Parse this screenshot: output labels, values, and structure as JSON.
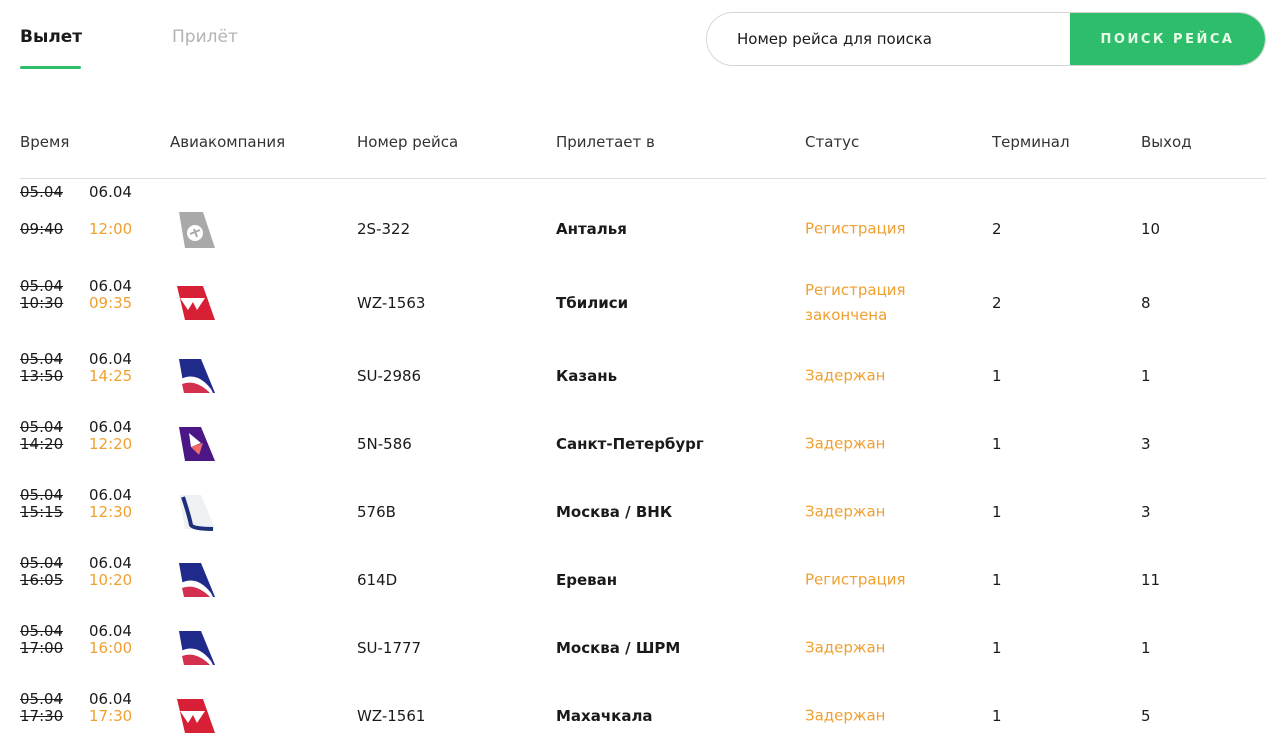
{
  "tabs": [
    {
      "label": "Вылет",
      "active": true
    },
    {
      "label": "Прилёт",
      "active": false
    }
  ],
  "search": {
    "placeholder": "Номер рейса для поиска",
    "button": "ПОИСК РЕЙСА"
  },
  "colors": {
    "accent": "#2ebd6b",
    "status": "#f0a030"
  },
  "columns": [
    "Время",
    "Авиакомпания",
    "Номер рейса",
    "Прилетает в",
    "Статус",
    "Терминал",
    "Выход"
  ],
  "flights": [
    {
      "old_date": "05.04",
      "old_time": "09:40",
      "new_date": "06.04",
      "new_time": "12:00",
      "logo": "grey-tail-logo",
      "flight": "2S-322",
      "dest": "Анталья",
      "status": "Регистрация",
      "terminal": "2",
      "gate": "10"
    },
    {
      "old_date": "05.04",
      "old_time": "10:30",
      "new_date": "06.04",
      "new_time": "09:35",
      "logo": "red-tail-logo",
      "flight": "WZ-1563",
      "dest": "Тбилиси",
      "status": "Регистрация закончена",
      "terminal": "2",
      "gate": "8"
    },
    {
      "old_date": "05.04",
      "old_time": "13:50",
      "new_date": "06.04",
      "new_time": "14:25",
      "logo": "aeroflot-tail-logo",
      "flight": "SU-2986",
      "dest": "Казань",
      "status": "Задержан",
      "terminal": "1",
      "gate": "1"
    },
    {
      "old_date": "05.04",
      "old_time": "14:20",
      "new_date": "06.04",
      "new_time": "12:20",
      "logo": "purple-tail-logo",
      "flight": "5N-586",
      "dest": "Санкт-Петербург",
      "status": "Задержан",
      "terminal": "1",
      "gate": "3"
    },
    {
      "old_date": "05.04",
      "old_time": "15:15",
      "new_date": "06.04",
      "new_time": "12:30",
      "logo": "white-blue-tail-logo",
      "flight": "576B",
      "dest": "Москва / ВНК",
      "status": "Задержан",
      "terminal": "1",
      "gate": "3"
    },
    {
      "old_date": "05.04",
      "old_time": "16:05",
      "new_date": "06.04",
      "new_time": "10:20",
      "logo": "aeroflot-tail-logo",
      "flight": "614D",
      "dest": "Ереван",
      "status": "Регистрация",
      "terminal": "1",
      "gate": "11"
    },
    {
      "old_date": "05.04",
      "old_time": "17:00",
      "new_date": "06.04",
      "new_time": "16:00",
      "logo": "aeroflot-tail-logo",
      "flight": "SU-1777",
      "dest": "Москва / ШРМ",
      "status": "Задержан",
      "terminal": "1",
      "gate": "1"
    },
    {
      "old_date": "05.04",
      "old_time": "17:30",
      "new_date": "06.04",
      "new_time": "17:30",
      "logo": "red-tail-logo",
      "flight": "WZ-1561",
      "dest": "Махачкала",
      "status": "Задержан",
      "terminal": "1",
      "gate": "5"
    }
  ]
}
